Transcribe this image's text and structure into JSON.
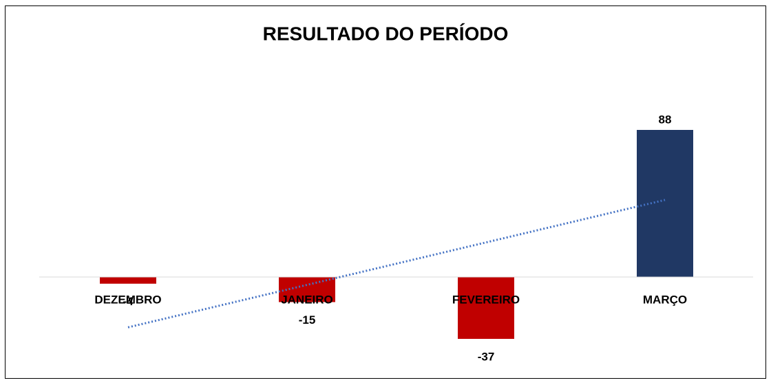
{
  "chart_data": {
    "type": "bar",
    "title": "RESULTADO DO PERÍODO",
    "categories": [
      "DEZEMBRO",
      "JANEIRO",
      "FEVEREIRO",
      "MARÇO"
    ],
    "values": [
      -4,
      -15,
      -37,
      88
    ],
    "negative_color": "#c00000",
    "positive_color": "#203864",
    "trendline": "linear",
    "trendline_color": "#4472c4"
  }
}
